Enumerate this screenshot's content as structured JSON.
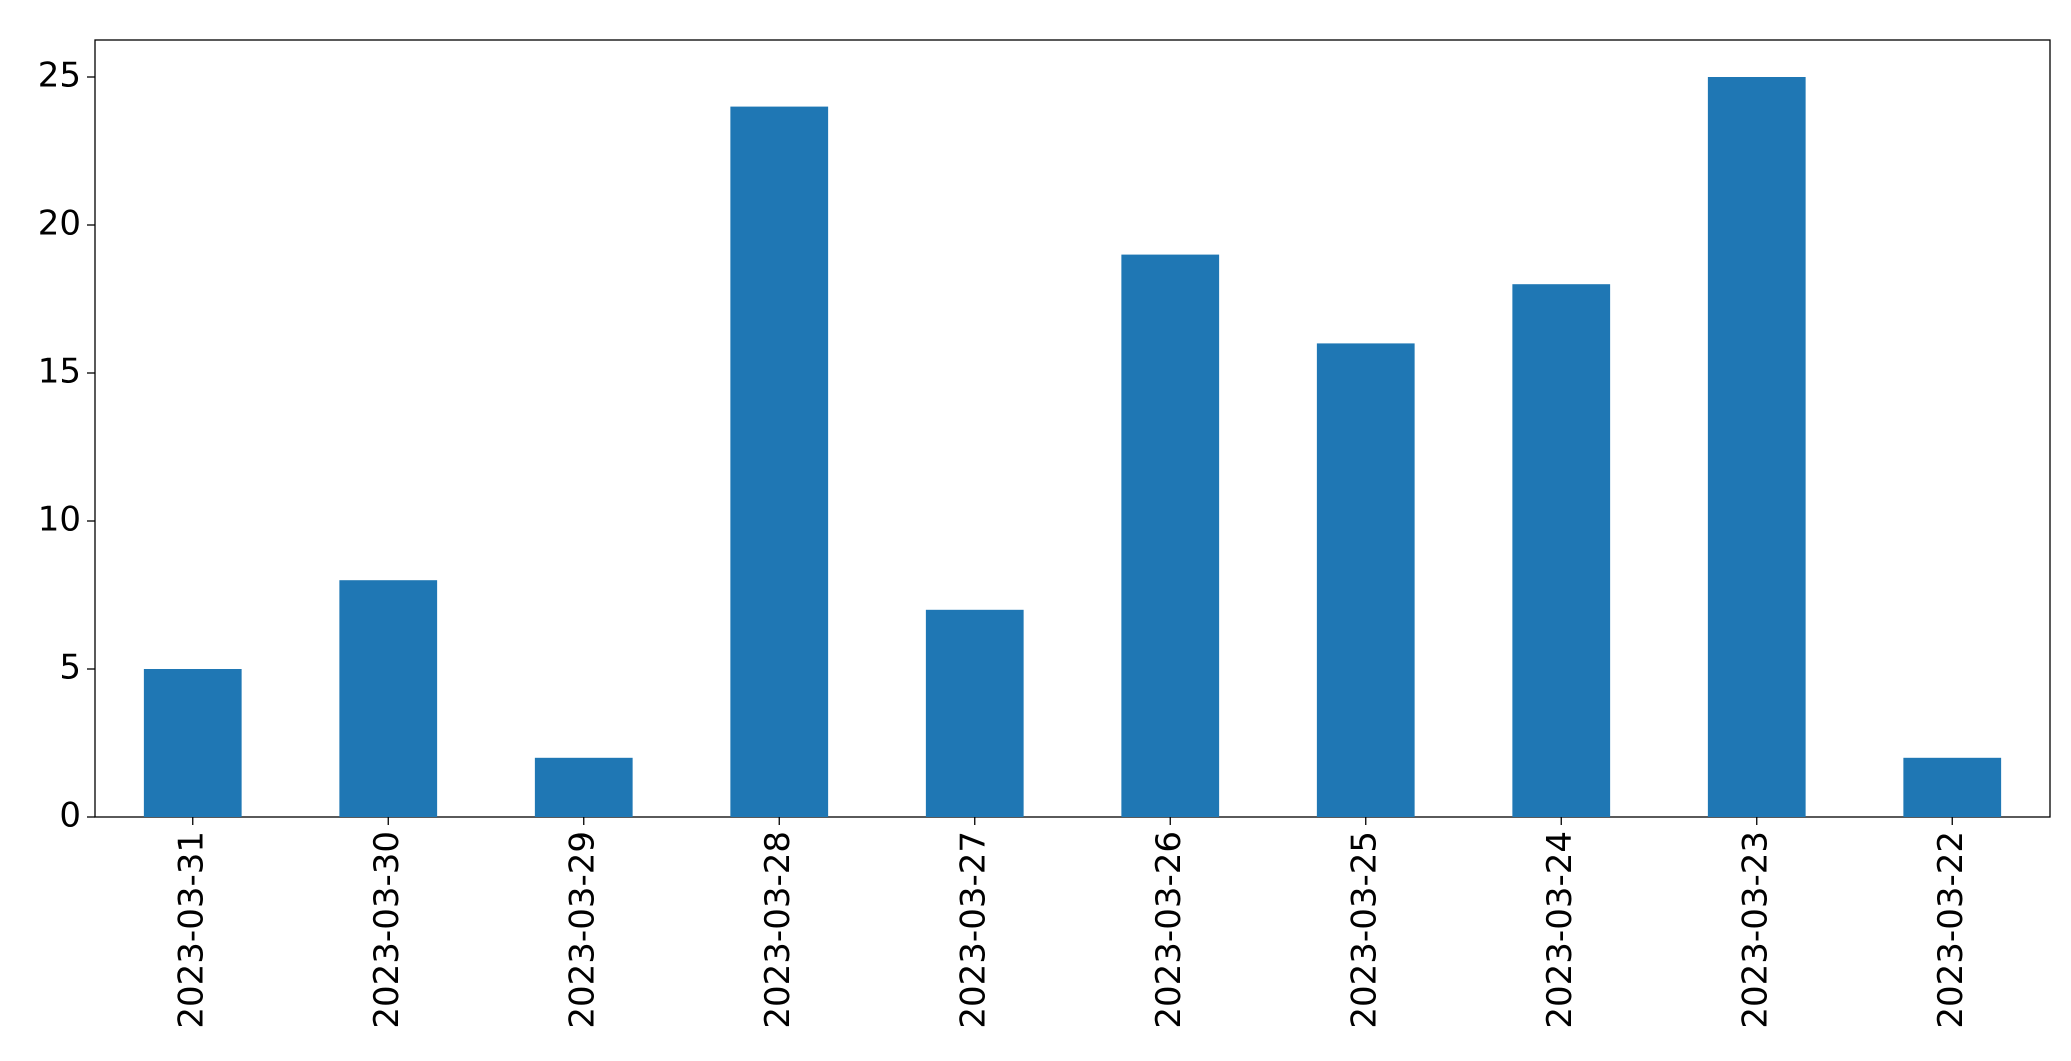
{
  "chart_data": {
    "type": "bar",
    "categories": [
      "2023-03-31",
      "2023-03-30",
      "2023-03-29",
      "2023-03-28",
      "2023-03-27",
      "2023-03-26",
      "2023-03-25",
      "2023-03-24",
      "2023-03-23",
      "2023-03-22"
    ],
    "values": [
      5,
      8,
      2,
      24,
      7,
      19,
      16,
      18,
      25,
      2
    ],
    "color": "#1f77b4",
    "ylim": [
      0,
      26.25
    ],
    "yticks": [
      0,
      5,
      10,
      15,
      20,
      25
    ],
    "grid": false
  }
}
